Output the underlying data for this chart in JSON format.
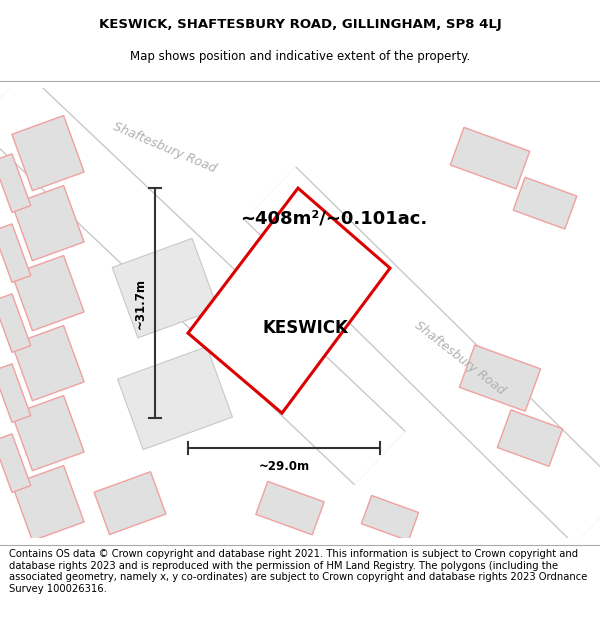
{
  "title_line1": "KESWICK, SHAFTESBURY ROAD, GILLINGHAM, SP8 4LJ",
  "title_line2": "Map shows position and indicative extent of the property.",
  "footer_text": "Contains OS data © Crown copyright and database right 2021. This information is subject to Crown copyright and database rights 2023 and is reproduced with the permission of HM Land Registry. The polygons (including the associated geometry, namely x, y co-ordinates) are subject to Crown copyright and database rights 2023 Ordnance Survey 100026316.",
  "area_label": "~408m²/~0.101ac.",
  "property_label": "KESWICK",
  "dim_h": "~29.0m",
  "dim_v": "~31.7m",
  "road_label_1": "Shaftesbury Road",
  "road_label_2": "Shaftesbury Road",
  "map_bg": "#f7f6f6",
  "road_fill": "#ffffff",
  "road_edge": "#c8c8c8",
  "road_label_color": "#b0b0b0",
  "building_fill": "#e0e0e0",
  "building_edge": "#f0a0a0",
  "property_edge": "#dd0000",
  "property_fill": "#ffffff",
  "dim_color": "#333333",
  "title_fontsize": 9.5,
  "subtitle_fontsize": 8.5,
  "footer_fontsize": 7.2,
  "area_fontsize": 13,
  "label_fontsize": 12,
  "dim_fontsize": 8.5
}
